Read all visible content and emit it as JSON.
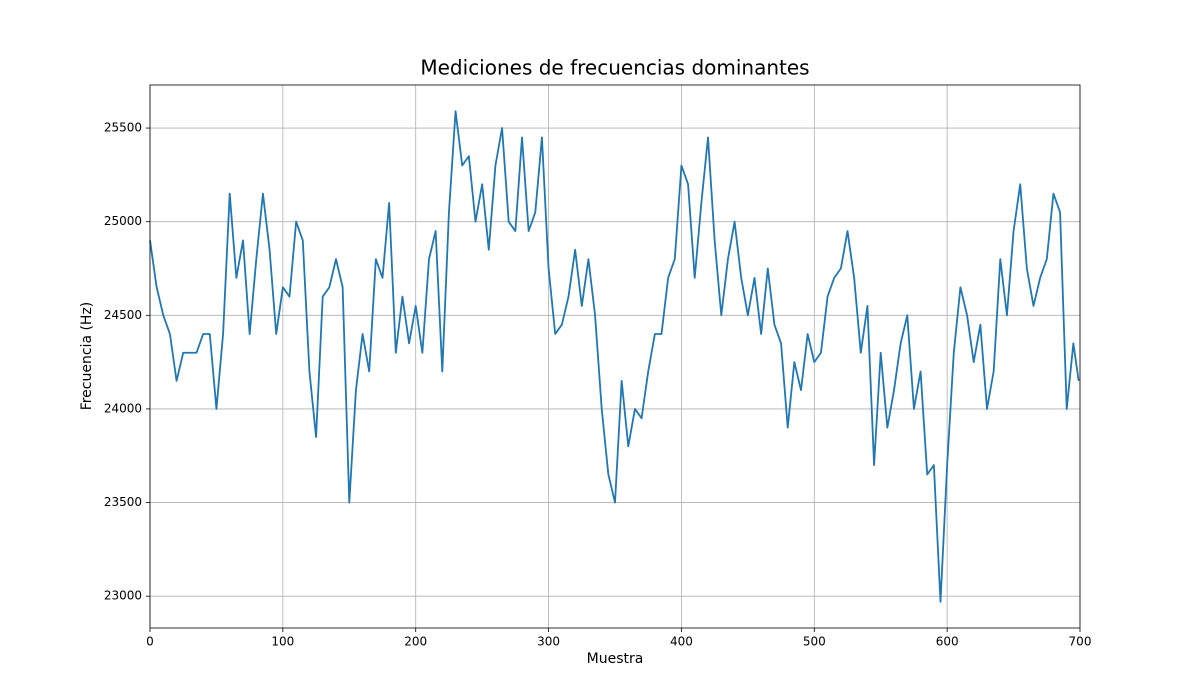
{
  "chart_data": {
    "type": "line",
    "title": "Mediciones de frecuencias dominantes",
    "x_label": "Muestra",
    "y_label": "Frecuencia (Hz)",
    "x": [
      0,
      5,
      10,
      15,
      20,
      25,
      30,
      35,
      40,
      45,
      50,
      55,
      60,
      65,
      70,
      75,
      80,
      85,
      90,
      95,
      100,
      105,
      110,
      115,
      120,
      125,
      130,
      135,
      140,
      145,
      150,
      155,
      160,
      165,
      170,
      175,
      180,
      185,
      190,
      195,
      200,
      205,
      210,
      215,
      220,
      225,
      230,
      235,
      240,
      245,
      250,
      255,
      260,
      265,
      270,
      275,
      280,
      285,
      290,
      295,
      300,
      305,
      310,
      315,
      320,
      325,
      330,
      335,
      340,
      345,
      350,
      355,
      360,
      365,
      370,
      375,
      380,
      385,
      390,
      395,
      400,
      405,
      410,
      415,
      420,
      425,
      430,
      435,
      440,
      445,
      450,
      455,
      460,
      465,
      470,
      475,
      480,
      485,
      490,
      495,
      500,
      505,
      510,
      515,
      520,
      525,
      530,
      535,
      540,
      545,
      550,
      555,
      560,
      565,
      570,
      575,
      580,
      585,
      590,
      595,
      600,
      605,
      610,
      615,
      620,
      625,
      630,
      635,
      640,
      645,
      650,
      655,
      660,
      665,
      670,
      675,
      680,
      685,
      690,
      695,
      699
    ],
    "series": [
      {
        "name": "Frecuencia",
        "color": "#1f77b4",
        "values": [
          24900,
          24650,
          24500,
          24400,
          24150,
          24300,
          24300,
          24300,
          24400,
          24400,
          24000,
          24400,
          25150,
          24700,
          24900,
          24400,
          24800,
          25150,
          24850,
          24400,
          24650,
          24600,
          25000,
          24900,
          24200,
          23850,
          24600,
          24650,
          24800,
          24650,
          23500,
          24100,
          24400,
          24200,
          24800,
          24700,
          25100,
          24300,
          24600,
          24350,
          24550,
          24300,
          24800,
          24950,
          24200,
          25050,
          25590,
          25300,
          25350,
          25000,
          25200,
          24850,
          25300,
          25500,
          25000,
          24950,
          25450,
          24950,
          25050,
          25450,
          24750,
          24400,
          24450,
          24600,
          24850,
          24550,
          24800,
          24500,
          24000,
          23650,
          23500,
          24150,
          23800,
          24000,
          23950,
          24200,
          24400,
          24400,
          24700,
          24800,
          25300,
          25200,
          24700,
          25100,
          25450,
          24900,
          24500,
          24800,
          25000,
          24700,
          24500,
          24700,
          24400,
          24750,
          24450,
          24350,
          23900,
          24250,
          24100,
          24400,
          24250,
          24300,
          24600,
          24700,
          24750,
          24950,
          24700,
          24300,
          24550,
          23700,
          24300,
          23900,
          24100,
          24350,
          24500,
          24000,
          24200,
          23650,
          23700,
          22970,
          23700,
          24300,
          24650,
          24500,
          24250,
          24450,
          24000,
          24200,
          24800,
          24500,
          24950,
          25200,
          24750,
          24550,
          24700,
          24800,
          25150,
          25050,
          24000,
          24350,
          24150
        ]
      }
    ],
    "xlim": [
      0,
      700
    ],
    "ylim": [
      22830,
      25730
    ],
    "xticks": [
      0,
      100,
      200,
      300,
      400,
      500,
      600,
      700
    ],
    "yticks": [
      23000,
      23500,
      24000,
      24500,
      25000,
      25500
    ],
    "grid": true
  }
}
